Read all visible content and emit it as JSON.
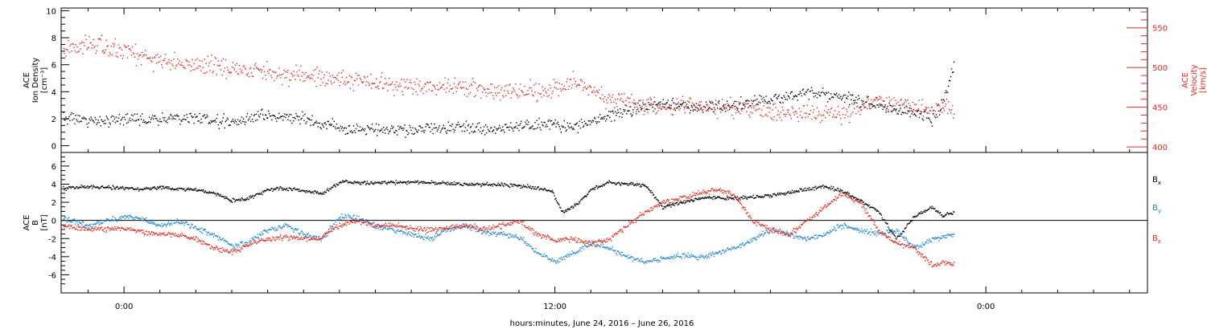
{
  "xaxis": {
    "label": "hours:minutes, June 24, 2016 – June 26, 2016",
    "range_hours": [
      -1.75,
      28.5
    ],
    "major_ticks": [
      {
        "hour": 0,
        "label": "0:00"
      },
      {
        "hour": 12,
        "label": "12:00"
      },
      {
        "hour": 24,
        "label": "0:00"
      }
    ],
    "minor_tick_hours": [
      -1,
      1,
      2,
      3,
      4,
      5,
      6,
      7,
      8,
      9,
      10,
      11,
      13,
      14,
      15,
      16,
      17,
      18,
      19,
      20,
      21,
      22,
      23,
      25,
      26,
      27,
      28
    ]
  },
  "top_panel": {
    "left_axis": {
      "title_lines": [
        "ACE",
        "Ion Density",
        "[cm⁻³]"
      ],
      "range": [
        -0.5,
        10.2
      ],
      "ticks": [
        0,
        2,
        4,
        6,
        8,
        10
      ]
    },
    "right_axis": {
      "title_lines": [
        "ACE",
        "Velocity",
        "[km/s]"
      ],
      "range": [
        393,
        575
      ],
      "ticks": [
        400,
        450,
        500,
        550
      ],
      "color": "#e8281f"
    }
  },
  "bottom_panel": {
    "left_axis": {
      "title_lines": [
        "ACE",
        "B",
        "[nT]"
      ],
      "range": [
        -8.0,
        7.5
      ],
      "ticks": [
        -6,
        -4,
        -2,
        0,
        2,
        4,
        6
      ]
    },
    "legend": [
      {
        "label": "B",
        "sub": "x",
        "color": "#000000"
      },
      {
        "label": "B",
        "sub": "y",
        "color": "#1f86d6"
      },
      {
        "label": "B",
        "sub": "z",
        "color": "#e8281f"
      }
    ]
  },
  "chart_data": [
    {
      "type": "scatter",
      "panel": "top",
      "xlabel": "hours:minutes, June 24, 2016 – June 26, 2016",
      "ylabel": "ACE Ion Density [cm⁻³]",
      "y2label": "ACE Velocity [km/s]",
      "x_unit": "hours from 2016-06-25 00:00",
      "series": [
        {
          "axis": "left",
          "color": "#000000",
          "x": [
            -1.7,
            -1,
            0,
            1,
            2,
            3,
            4,
            5,
            6,
            7,
            8,
            9,
            10,
            11,
            11.8,
            12.5,
            13.2,
            14,
            15,
            16,
            17,
            18,
            19,
            20,
            21,
            22,
            22.5,
            22.8,
            23.1
          ],
          "y": [
            2.2,
            1.9,
            2.0,
            2.0,
            2.1,
            1.7,
            2.3,
            2.0,
            1.4,
            1.2,
            1.2,
            1.4,
            1.3,
            1.4,
            1.7,
            1.4,
            2.0,
            2.6,
            3.1,
            2.8,
            3.0,
            3.4,
            4.0,
            3.7,
            3.0,
            2.5,
            2.0,
            3.2,
            6.2
          ]
        },
        {
          "axis": "right",
          "color": "#e8281f",
          "x": [
            -1.7,
            -1,
            0,
            1,
            2,
            3,
            4,
            5,
            6,
            7,
            8,
            9,
            10,
            11,
            11.8,
            12.4,
            12.9,
            13.5,
            14,
            15,
            16,
            17,
            18,
            19,
            20,
            21,
            22,
            22.5,
            22.8,
            23.1
          ],
          "y": [
            520,
            532,
            520,
            510,
            504,
            500,
            494,
            490,
            486,
            482,
            477,
            475,
            472,
            469,
            470,
            482,
            478,
            458,
            455,
            450,
            452,
            448,
            445,
            443,
            440,
            460,
            450,
            448,
            455,
            445
          ]
        }
      ]
    },
    {
      "type": "scatter",
      "panel": "bottom",
      "xlabel": "hours:minutes, June 24, 2016 – June 26, 2016",
      "ylabel": "ACE B [nT]",
      "x_unit": "hours from 2016-06-25 00:00",
      "ylim": [
        -8.0,
        7.5
      ],
      "series": [
        {
          "name": "Bx",
          "color": "#000000",
          "x": [
            -1.7,
            -1,
            0,
            0.5,
            1,
            1.5,
            2,
            2.5,
            3,
            3.5,
            4,
            4.5,
            5,
            5.5,
            6,
            7,
            8,
            9,
            10,
            11,
            11.5,
            11.9,
            12.2,
            12.6,
            13,
            13.5,
            14,
            14.5,
            15,
            15.5,
            16,
            17,
            18,
            19,
            19.5,
            20,
            20.5,
            21,
            21.5,
            22,
            22.5,
            22.8,
            23.1
          ],
          "y": [
            3.6,
            3.8,
            3.6,
            3.5,
            3.7,
            3.5,
            3.4,
            3.1,
            2.2,
            2.5,
            3.5,
            3.6,
            3.3,
            3.0,
            4.3,
            4.2,
            4.3,
            4.1,
            4.0,
            3.9,
            3.6,
            3.3,
            1.0,
            1.8,
            3.5,
            4.2,
            4.1,
            3.9,
            1.5,
            2.0,
            2.5,
            2.5,
            2.8,
            3.5,
            3.8,
            3.3,
            2.2,
            1.0,
            -2.0,
            0.5,
            1.5,
            0.5,
            1.0
          ]
        },
        {
          "name": "By",
          "color": "#1f86d6",
          "x": [
            -1.7,
            -1,
            0,
            0.5,
            1,
            1.5,
            2,
            2.5,
            3,
            3.5,
            4,
            4.5,
            5,
            5.5,
            6,
            6.5,
            7,
            7.5,
            8,
            8.5,
            9,
            9.5,
            10,
            10.5,
            11,
            11.5,
            12,
            12.5,
            13,
            13.5,
            14,
            14.5,
            15,
            15.5,
            16,
            16.5,
            17,
            17.5,
            18,
            18.5,
            19,
            19.5,
            20,
            20.5,
            21,
            21.5,
            22,
            22.5,
            23.1
          ],
          "y": [
            0.3,
            -0.5,
            0.5,
            0.2,
            -0.5,
            0.0,
            -0.8,
            -1.5,
            -2.8,
            -2.3,
            -1.0,
            -0.5,
            -1.5,
            -2.0,
            0.5,
            0.3,
            -0.5,
            -1.0,
            -1.5,
            -2.0,
            -1.0,
            -0.5,
            -1.3,
            -1.5,
            -1.8,
            -3.5,
            -4.5,
            -3.5,
            -2.5,
            -3.0,
            -4.0,
            -4.5,
            -4.2,
            -3.8,
            -4.0,
            -3.5,
            -3.0,
            -2.0,
            -1.0,
            -1.5,
            -2.0,
            -1.5,
            -0.5,
            -1.0,
            -1.5,
            -1.0,
            -3.0,
            -2.0,
            -1.5
          ]
        },
        {
          "name": "Bz",
          "color": "#e8281f",
          "x": [
            -1.7,
            -1,
            0,
            0.5,
            1,
            1.5,
            2,
            2.5,
            3,
            3.5,
            4,
            4.5,
            5,
            5.5,
            6,
            6.5,
            7,
            7.5,
            8,
            8.5,
            9,
            9.5,
            10,
            10.5,
            11,
            11.5,
            12,
            12.5,
            13,
            13.5,
            14,
            14.5,
            15,
            15.5,
            16,
            16.5,
            17,
            17.5,
            18,
            18.5,
            19,
            19.5,
            20,
            20.5,
            21,
            21.5,
            22,
            22.5,
            22.8,
            23.1
          ],
          "y": [
            -0.5,
            -1.0,
            -0.8,
            -1.2,
            -1.5,
            -1.5,
            -2.0,
            -3.0,
            -3.5,
            -2.5,
            -2.0,
            -1.8,
            -2.0,
            -1.8,
            -0.5,
            0.0,
            -0.5,
            -0.5,
            -0.8,
            -1.0,
            -0.8,
            -0.5,
            -1.0,
            -0.5,
            0.0,
            -1.5,
            -2.2,
            -2.0,
            -2.5,
            -2.0,
            -0.5,
            1.0,
            2.0,
            2.5,
            3.0,
            3.5,
            2.8,
            0.0,
            -1.0,
            -1.5,
            0.0,
            1.5,
            3.0,
            2.0,
            -1.0,
            -2.5,
            -3.0,
            -5.0,
            -4.5,
            -4.8
          ]
        }
      ]
    }
  ]
}
